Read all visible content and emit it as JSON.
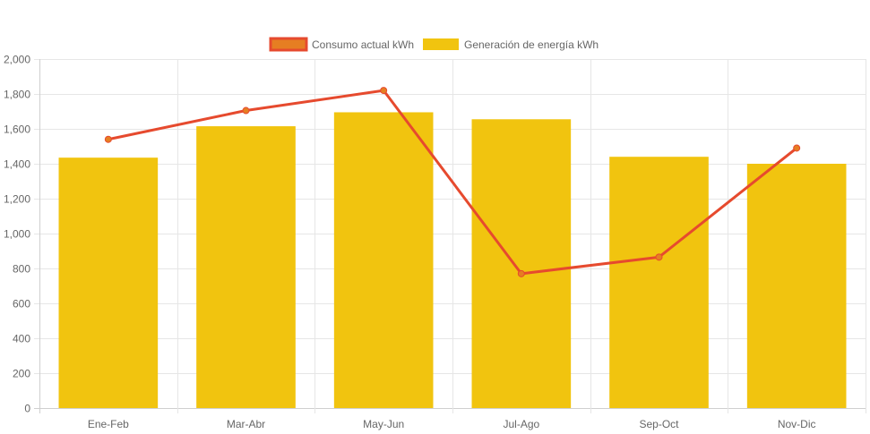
{
  "chart_data": {
    "type": "bar",
    "categories": [
      "Ene-Feb",
      "Mar-Abr",
      "May-Jun",
      "Jul-Ago",
      "Sep-Oct",
      "Nov-Dic"
    ],
    "series": [
      {
        "name": "Consumo actual kWh",
        "type": "line",
        "values": [
          1540,
          1705,
          1820,
          770,
          865,
          1490
        ],
        "color": "#e64a2e",
        "point_color": "#e67e22"
      },
      {
        "name": "Generación de energía kWh",
        "type": "bar",
        "values": [
          1435,
          1615,
          1695,
          1655,
          1440,
          1400
        ],
        "color": "#f1c40f"
      }
    ],
    "ylim": [
      0,
      2000
    ],
    "yticks": [
      0,
      200,
      400,
      600,
      800,
      1000,
      1200,
      1400,
      1600,
      1800,
      2000
    ],
    "ytick_labels": [
      "0",
      "200",
      "400",
      "600",
      "800",
      "1,000",
      "1,200",
      "1,400",
      "1,600",
      "1,800",
      "2,000"
    ],
    "grid": true,
    "legend_position": "top",
    "title": "",
    "xlabel": "",
    "ylabel": ""
  }
}
